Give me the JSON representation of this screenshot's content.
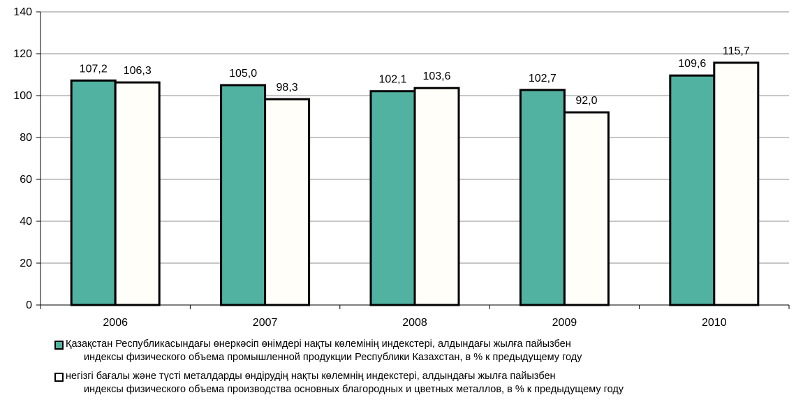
{
  "chart_data": {
    "type": "bar",
    "categories": [
      "2006",
      "2007",
      "2008",
      "2009",
      "2010"
    ],
    "series": [
      {
        "name_kk": "Қазақстан Республикасындағы өнеркәсіп өнімдері нақты көлемінің индекстері, алдындағы жылға пайызбен",
        "name_ru": "индексы физического объема промышленной продукции Республики Казахстан, в % к предыдущему году",
        "values": [
          107.2,
          105.0,
          102.1,
          102.7,
          109.6
        ],
        "labels": [
          "107,2",
          "105,0",
          "102,1",
          "102,7",
          "109,6"
        ],
        "color": "#52b2a2"
      },
      {
        "name_kk": "негізгі бағалы және түсті металдарды өндірудің нақты көлемнің индекстері, алдындағы жылға пайызбен",
        "name_ru": "индексы физического объема производства основных благородных и цветных металлов, в % к предыдущему году",
        "values": [
          106.3,
          98.3,
          103.6,
          92.0,
          115.7
        ],
        "labels": [
          "106,3",
          "98,3",
          "103,6",
          "92,0",
          "115,7"
        ],
        "color": "#fffef8"
      }
    ],
    "ylim": [
      0,
      140
    ],
    "yticks": [
      "0",
      "20",
      "40",
      "60",
      "80",
      "100",
      "120",
      "140"
    ],
    "grid": true,
    "legend_position": "bottom"
  }
}
